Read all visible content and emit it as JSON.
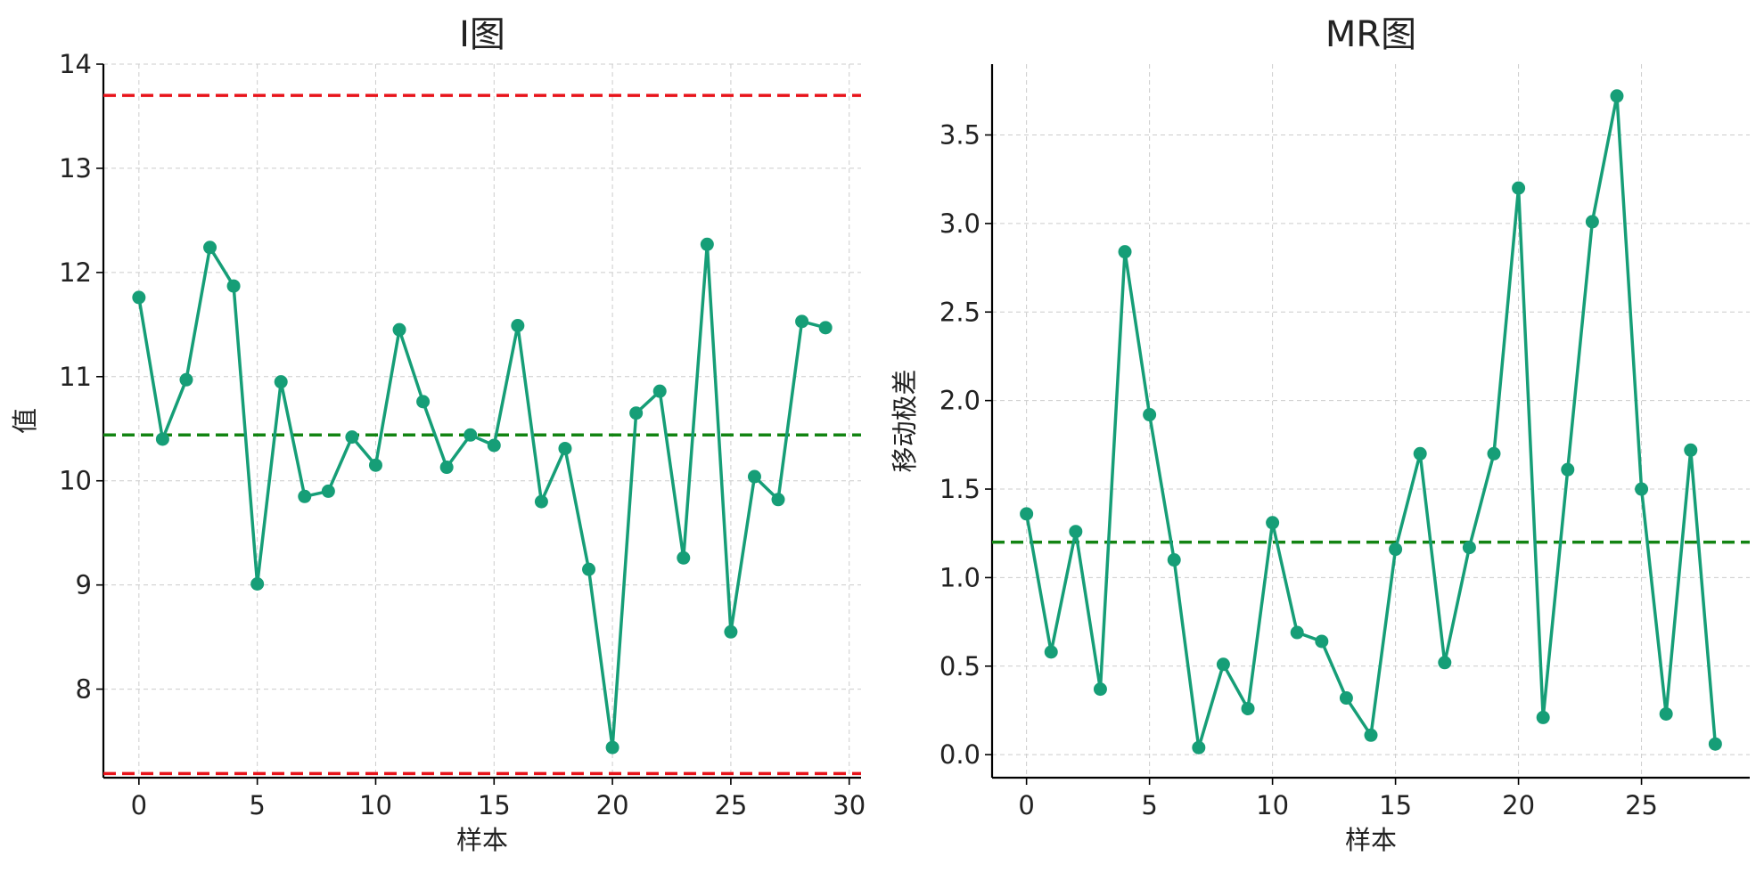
{
  "chart_data": [
    {
      "type": "line",
      "title": "I图",
      "xlabel": "样本",
      "ylabel": "值",
      "xlim": [
        -1.5,
        30.5
      ],
      "ylim": [
        7.15,
        14.0
      ],
      "xticks": [
        0,
        5,
        10,
        15,
        20,
        25,
        30
      ],
      "yticks": [
        8,
        9,
        10,
        11,
        12,
        13,
        14
      ],
      "grid": true,
      "legend": "none",
      "series": [
        {
          "color": "#169e77",
          "marker": "circle",
          "x": [
            0,
            1,
            2,
            3,
            4,
            5,
            6,
            7,
            8,
            9,
            10,
            11,
            12,
            13,
            14,
            15,
            16,
            17,
            18,
            19,
            20,
            21,
            22,
            23,
            24,
            25,
            26,
            27,
            28,
            29
          ],
          "values": [
            11.76,
            10.4,
            10.97,
            12.24,
            11.87,
            9.01,
            10.95,
            9.85,
            9.9,
            10.42,
            10.15,
            11.45,
            10.76,
            10.13,
            10.44,
            10.34,
            11.49,
            9.8,
            10.31,
            9.15,
            7.44,
            10.65,
            10.86,
            9.26,
            12.27,
            8.55,
            10.04,
            9.82,
            11.53,
            11.47
          ]
        }
      ],
      "reference_lines": [
        {
          "kind": "upper-control-limit",
          "y": 13.7,
          "color": "#e8131a"
        },
        {
          "kind": "center-line",
          "y": 10.44,
          "color": "#138413"
        },
        {
          "kind": "lower-control-limit",
          "y": 7.19,
          "color": "#e8131a"
        }
      ]
    },
    {
      "type": "line",
      "title": "MR图",
      "xlabel": "样本",
      "ylabel": "移动极差",
      "xlim": [
        -1.4,
        29.4
      ],
      "ylim": [
        -0.13,
        3.9
      ],
      "xticks": [
        0,
        5,
        10,
        15,
        20,
        25
      ],
      "yticks": [
        0.0,
        0.5,
        1.0,
        1.5,
        2.0,
        2.5,
        3.0,
        3.5
      ],
      "ytick_labels": [
        "0.0",
        "0.5",
        "1.0",
        "1.5",
        "2.0",
        "2.5",
        "3.0",
        "3.5"
      ],
      "grid": true,
      "legend": "none",
      "series": [
        {
          "color": "#169e77",
          "marker": "circle",
          "x": [
            0,
            1,
            2,
            3,
            4,
            5,
            6,
            7,
            8,
            9,
            10,
            11,
            12,
            13,
            14,
            15,
            16,
            17,
            18,
            19,
            20,
            21,
            22,
            23,
            24,
            25,
            26,
            27,
            28
          ],
          "values": [
            1.36,
            0.58,
            1.26,
            0.37,
            2.84,
            1.92,
            1.1,
            0.04,
            0.51,
            0.26,
            1.31,
            0.69,
            0.64,
            0.32,
            0.11,
            1.16,
            1.7,
            0.52,
            1.17,
            1.7,
            3.2,
            0.21,
            1.61,
            3.01,
            3.72,
            1.5,
            0.23,
            1.72,
            0.06
          ]
        }
      ],
      "reference_lines": [
        {
          "kind": "center-line",
          "y": 1.2,
          "color": "#138413"
        }
      ]
    }
  ]
}
